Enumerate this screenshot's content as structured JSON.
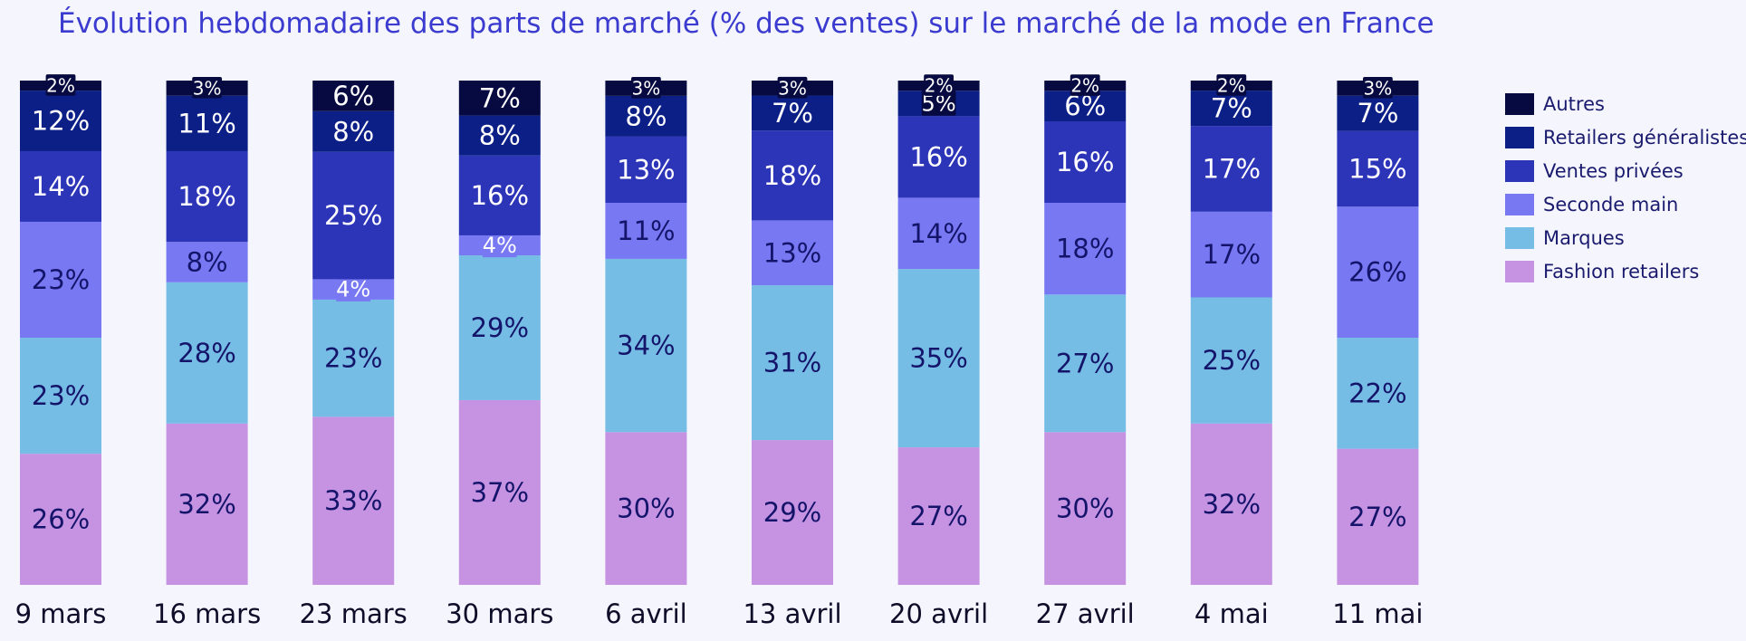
{
  "chart_data": {
    "type": "bar",
    "stacked": true,
    "title": "Évolution hebdomadaire des parts de marché (% des ventes) sur le marché de la mode en France",
    "categories": [
      "9 mars",
      "16 mars",
      "23 mars",
      "30 mars",
      "6 avril",
      "13 avril",
      "20 avril",
      "27 avril",
      "4 mai",
      "11 mai"
    ],
    "ylim": [
      0,
      100
    ],
    "grid": false,
    "legend_position": "right",
    "series": [
      {
        "name": "Fashion retailers",
        "color": "#c692e2",
        "values": [
          26,
          32,
          33,
          37,
          30,
          29,
          27,
          30,
          32,
          27
        ]
      },
      {
        "name": "Marques",
        "color": "#76bde5",
        "values": [
          23,
          28,
          23,
          29,
          34,
          31,
          35,
          27,
          25,
          22
        ]
      },
      {
        "name": "Seconde main",
        "color": "#7878f3",
        "values": [
          23,
          8,
          4,
          4,
          11,
          13,
          14,
          18,
          17,
          26
        ]
      },
      {
        "name": "Ventes privées",
        "color": "#2c34b8",
        "values": [
          14,
          18,
          25,
          16,
          13,
          18,
          16,
          16,
          17,
          15
        ]
      },
      {
        "name": "Retailers généralistes",
        "color": "#0b1f86",
        "values": [
          12,
          11,
          8,
          8,
          8,
          7,
          5,
          6,
          7,
          7
        ]
      },
      {
        "name": "Autres",
        "color": "#070a40",
        "values": [
          2,
          3,
          6,
          7,
          3,
          3,
          2,
          2,
          2,
          3
        ]
      }
    ]
  }
}
